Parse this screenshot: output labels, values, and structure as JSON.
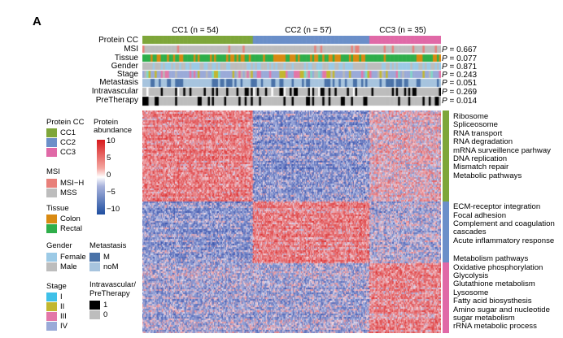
{
  "panel_label": "A",
  "clusters": [
    {
      "label": "CC1 (n = 54)",
      "color": "#7ea63a",
      "n": 54
    },
    {
      "label": "CC2 (n = 57)",
      "color": "#6b8fc9",
      "n": 57
    },
    {
      "label": "CC3 (n = 35)",
      "color": "#e069a7",
      "n": 35
    }
  ],
  "annotation_rows": [
    {
      "label": "Protein CC",
      "p": ""
    },
    {
      "label": "MSI",
      "p": "= 0.667"
    },
    {
      "label": "Tissue",
      "p": "= 0.077"
    },
    {
      "label": "Gender",
      "p": "= 0.871"
    },
    {
      "label": "Stage",
      "p": "= 0.243"
    },
    {
      "label": "Metastasis",
      "p": "= 0.051"
    },
    {
      "label": "Intravascular",
      "p": "= 0.269"
    },
    {
      "label": "PreTherapy",
      "p": "= 0.014"
    }
  ],
  "p_symbol": "P",
  "legend": {
    "protein_cc": {
      "title": "Protein CC",
      "items": [
        {
          "label": "CC1",
          "color": "#7ea63a"
        },
        {
          "label": "CC2",
          "color": "#6b8fc9"
        },
        {
          "label": "CC3",
          "color": "#e069a7"
        }
      ]
    },
    "msi": {
      "title": "MSI",
      "items": [
        {
          "label": "MSI−H",
          "color": "#e8807a"
        },
        {
          "label": "MSS",
          "color": "#bdbdbd"
        }
      ]
    },
    "tissue": {
      "title": "Tissue",
      "items": [
        {
          "label": "Colon",
          "color": "#d98a12"
        },
        {
          "label": "Rectal",
          "color": "#2fae4a"
        }
      ]
    },
    "gender": {
      "title": "Gender",
      "items": [
        {
          "label": "Female",
          "color": "#9ccae6"
        },
        {
          "label": "Male",
          "color": "#bdbdbd"
        }
      ]
    },
    "metastasis": {
      "title": "Metastasis",
      "items": [
        {
          "label": "M",
          "color": "#4a72a8"
        },
        {
          "label": "noM",
          "color": "#a7c4de"
        }
      ]
    },
    "stage": {
      "title": "Stage",
      "items": [
        {
          "label": "I",
          "color": "#3fc0e8"
        },
        {
          "label": "II",
          "color": "#c2b730"
        },
        {
          "label": "III",
          "color": "#e377a8"
        },
        {
          "label": "IV",
          "color": "#9aaad8"
        }
      ]
    },
    "binary": {
      "title1": "Intravascular/",
      "title2": "PreTherapy",
      "items": [
        {
          "label": "1",
          "color": "#000000"
        },
        {
          "label": "0",
          "color": "#bdbdbd"
        }
      ]
    },
    "abundance": {
      "title1": "Protein",
      "title2": "abundance",
      "ticks": [
        "10",
        "5",
        "0",
        "−5",
        "−10"
      ],
      "range": [
        -10,
        10
      ]
    }
  },
  "pathway_groups": [
    {
      "color": "#7ea63a",
      "items": [
        "Ribosome",
        "Spliceosome",
        "RNA transport",
        "RNA degradation",
        "mRNA surveillence parhway",
        "DNA replication",
        "Mismatch repair",
        "Metabolic pathways"
      ]
    },
    {
      "color": "#6b8fc9",
      "items": [
        "ECM-receptor integration",
        "Focal adhesion",
        "Complement and coagulation",
        "cascades",
        "Acute inflammatory response"
      ]
    },
    {
      "color": "#e069a7",
      "items": [
        "Metabolism pathways",
        "Oxidative phosphorylation",
        "Glycolysis",
        "Glutathione metabolism",
        "Lysosome",
        "Fatty acid biosysthesis",
        "Amino sugar and nucleotide",
        "sugar metabolism",
        "rRNA metabolic process"
      ]
    }
  ]
}
